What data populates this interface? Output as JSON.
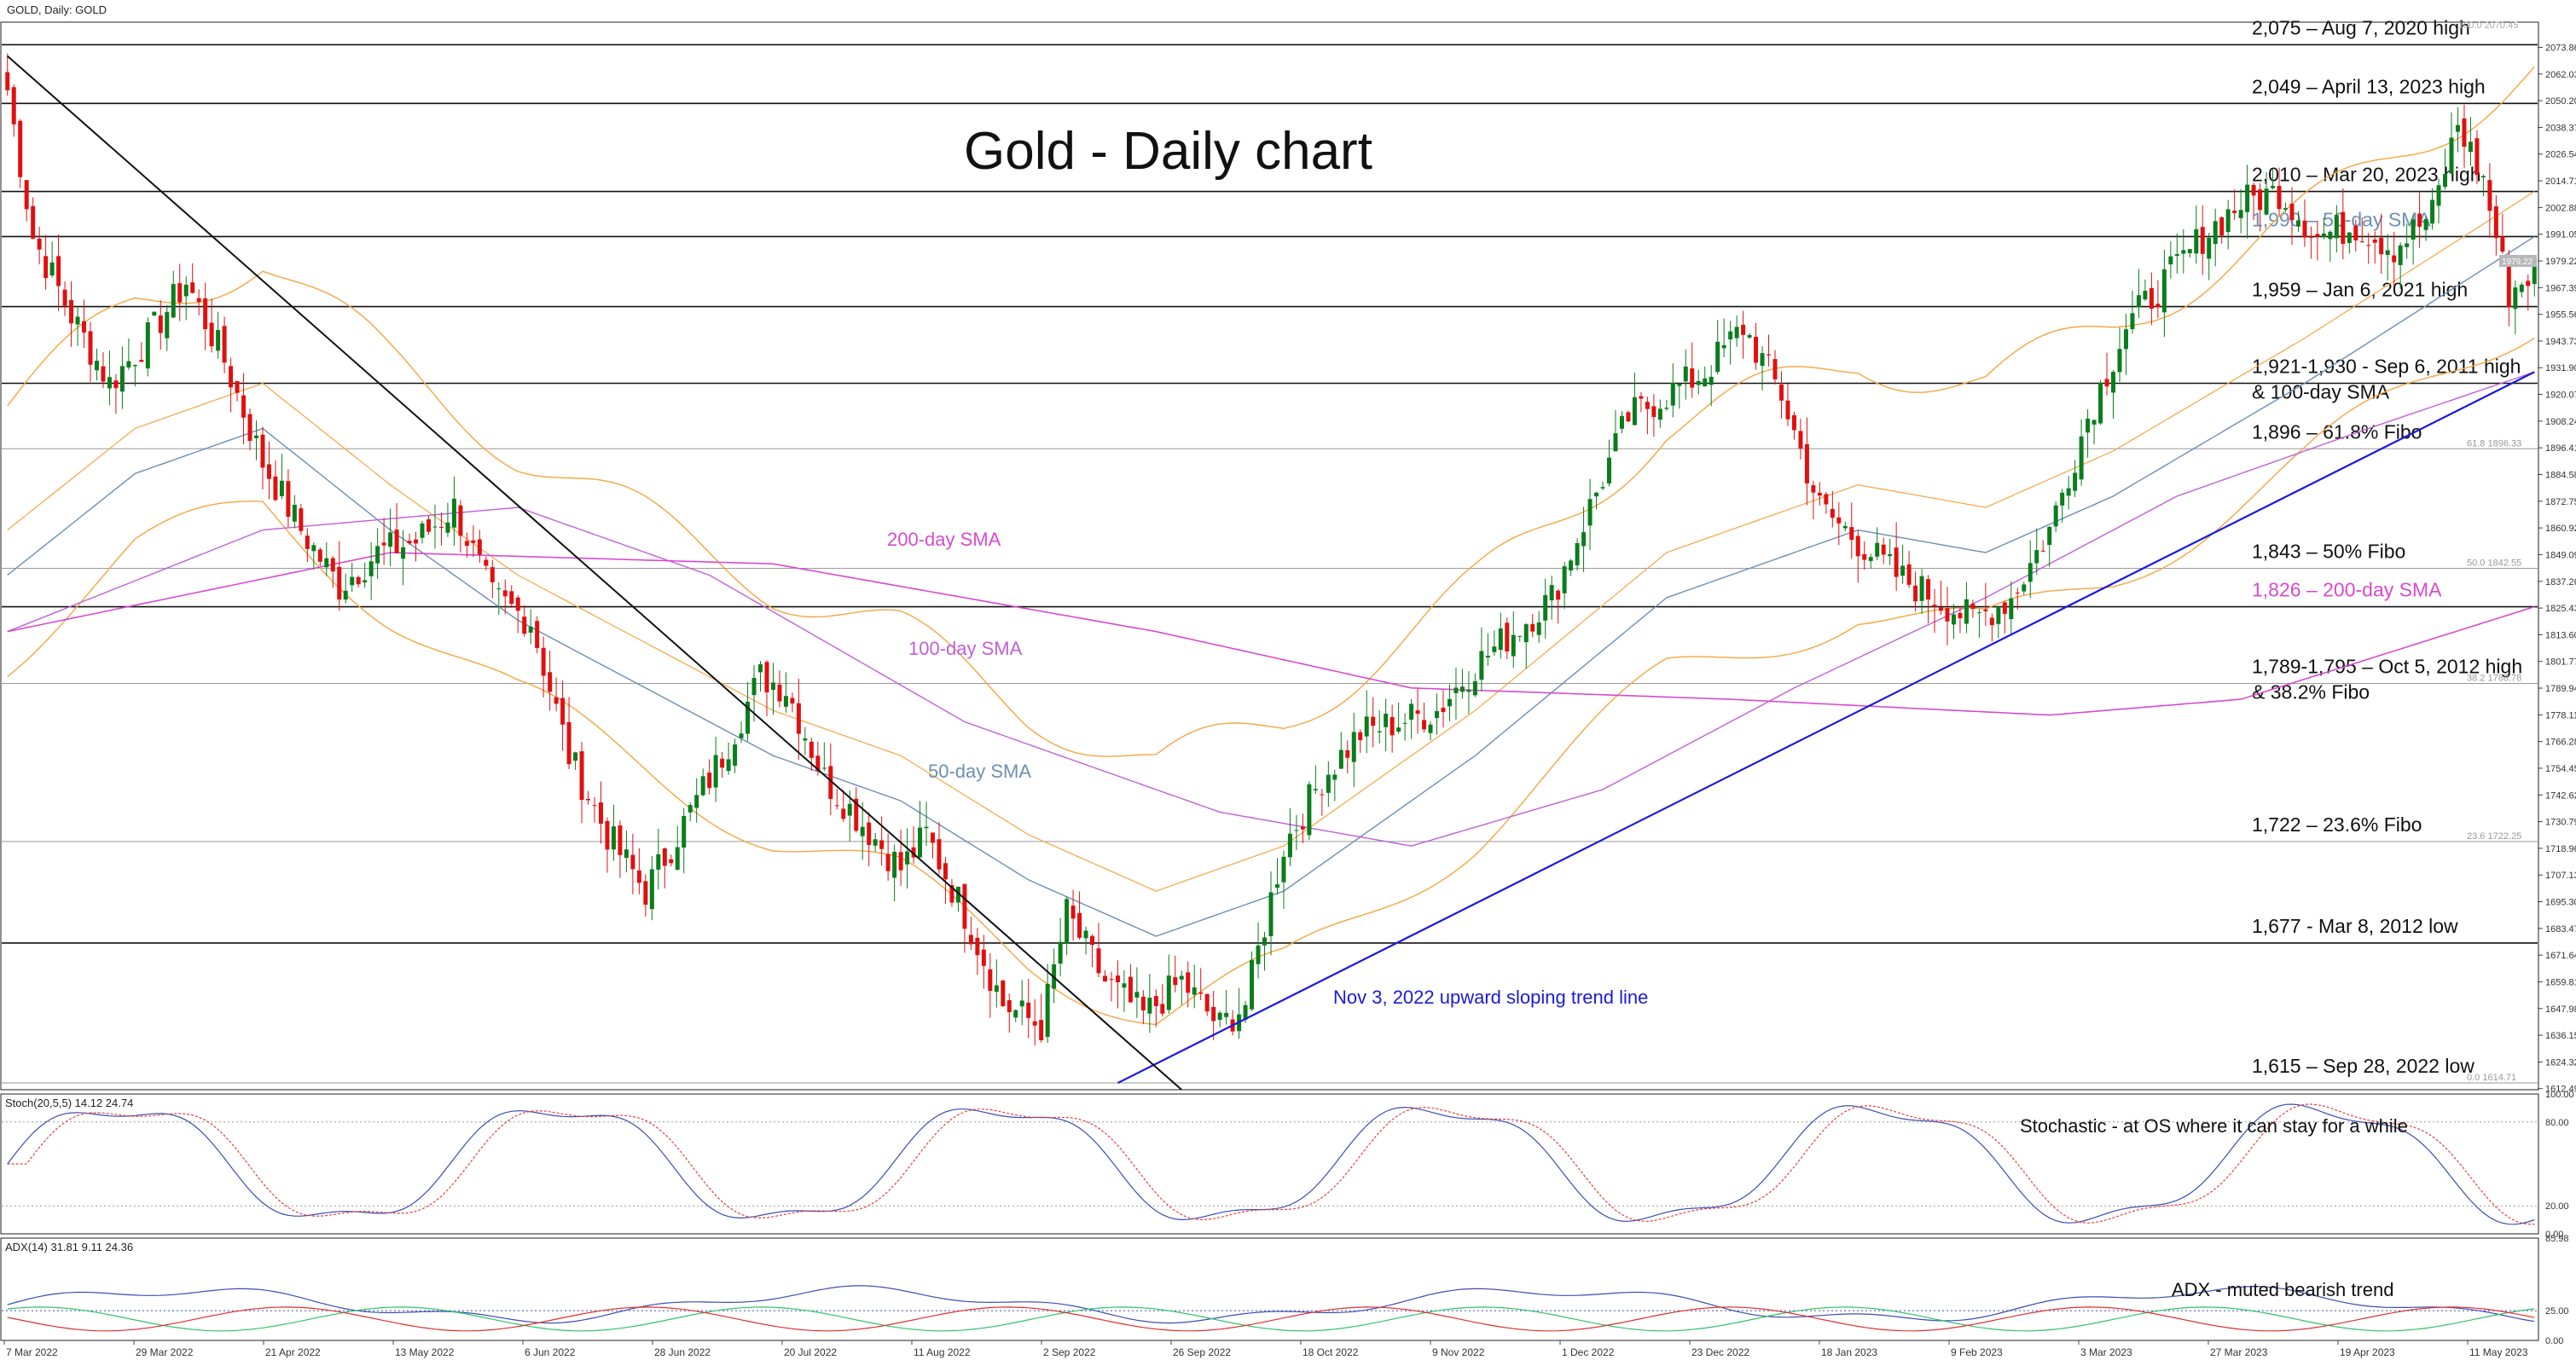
{
  "header": {
    "symbol_label": "GOLD, Daily:  GOLD"
  },
  "title": "Gold - Daily chart",
  "colors": {
    "bull": "#0a7d1c",
    "bear": "#e01010",
    "sma50": "#6b8fb5",
    "sma100": "#c060d8",
    "sma200": "#d84ad0",
    "bollinger": "#f4a640",
    "trend": "#1a1adc",
    "downtrend": "#111111",
    "stoch_main": "#3c4cb4",
    "stoch_signal": "#e04040",
    "adx_main": "#3c4cb4",
    "adx_plus": "#2ec46a",
    "adx_minus": "#e03030",
    "grid": "#d8d8d8",
    "axis": "#444444"
  },
  "chart_data": {
    "type": "candlestick",
    "ylim": [
      1612,
      2085
    ],
    "y_ticks": [
      "2073.86",
      "2062.03",
      "2050.20",
      "2038.37",
      "2026.54",
      "2014.71",
      "2002.88",
      "1991.05",
      "1979.22",
      "1967.39",
      "1955.56",
      "1943.73",
      "1931.90",
      "1920.07",
      "1908.24",
      "1896.41",
      "1884.58",
      "1872.75",
      "1860.92",
      "1849.09",
      "1837.26",
      "1825.43",
      "1813.60",
      "1801.77",
      "1789.94",
      "1778.11",
      "1766.28",
      "1754.45",
      "1742.62",
      "1730.79",
      "1718.96",
      "1707.13",
      "1695.30",
      "1683.47",
      "1671.64",
      "1659.81",
      "1647.98",
      "1636.15",
      "1624.32",
      "1612.49"
    ],
    "x_ticks": [
      "7 Mar 2022",
      "29 Mar 2022",
      "21 Apr 2022",
      "13 May 2022",
      "6 Jun 2022",
      "28 Jun 2022",
      "20 Jul 2022",
      "11 Aug 2022",
      "2 Sep 2022",
      "26 Sep 2022",
      "18 Oct 2022",
      "9 Nov 2022",
      "1 Dec 2022",
      "23 Dec 2022",
      "18 Jan 2023",
      "9 Feb 2023",
      "3 Mar 2023",
      "27 Mar 2023",
      "19 Apr 2023",
      "11 May 2023"
    ],
    "price_anchors": [
      [
        0,
        2055
      ],
      [
        4,
        1990
      ],
      [
        10,
        1955
      ],
      [
        16,
        1925
      ],
      [
        22,
        1945
      ],
      [
        28,
        1970
      ],
      [
        34,
        1935
      ],
      [
        40,
        1890
      ],
      [
        46,
        1860
      ],
      [
        52,
        1835
      ],
      [
        58,
        1850
      ],
      [
        64,
        1855
      ],
      [
        70,
        1870
      ],
      [
        76,
        1830
      ],
      [
        82,
        1820
      ],
      [
        88,
        1760
      ],
      [
        94,
        1725
      ],
      [
        100,
        1700
      ],
      [
        106,
        1730
      ],
      [
        112,
        1760
      ],
      [
        118,
        1795
      ],
      [
        122,
        1790
      ],
      [
        128,
        1750
      ],
      [
        134,
        1730
      ],
      [
        140,
        1710
      ],
      [
        144,
        1725
      ],
      [
        150,
        1690
      ],
      [
        156,
        1650
      ],
      [
        162,
        1640
      ],
      [
        166,
        1690
      ],
      [
        172,
        1660
      ],
      [
        178,
        1645
      ],
      [
        184,
        1660
      ],
      [
        190,
        1640
      ],
      [
        194,
        1650
      ],
      [
        200,
        1720
      ],
      [
        206,
        1750
      ],
      [
        212,
        1770
      ],
      [
        218,
        1775
      ],
      [
        224,
        1780
      ],
      [
        230,
        1800
      ],
      [
        236,
        1815
      ],
      [
        242,
        1830
      ],
      [
        248,
        1870
      ],
      [
        254,
        1910
      ],
      [
        260,
        1920
      ],
      [
        266,
        1930
      ],
      [
        272,
        1950
      ],
      [
        278,
        1920
      ],
      [
        284,
        1870
      ],
      [
        290,
        1855
      ],
      [
        296,
        1840
      ],
      [
        302,
        1830
      ],
      [
        308,
        1820
      ],
      [
        314,
        1830
      ],
      [
        320,
        1860
      ],
      [
        326,
        1910
      ],
      [
        332,
        1950
      ],
      [
        338,
        1970
      ],
      [
        344,
        1990
      ],
      [
        350,
        2005
      ],
      [
        356,
        2010
      ],
      [
        362,
        1990
      ],
      [
        368,
        1995
      ],
      [
        374,
        1985
      ],
      [
        380,
        2000
      ],
      [
        384,
        2040
      ],
      [
        388,
        2015
      ],
      [
        392,
        1965
      ],
      [
        396,
        1975
      ]
    ],
    "sma50_anchors": [
      [
        0,
        1840
      ],
      [
        20,
        1885
      ],
      [
        40,
        1905
      ],
      [
        60,
        1860
      ],
      [
        80,
        1820
      ],
      [
        100,
        1790
      ],
      [
        120,
        1760
      ],
      [
        140,
        1740
      ],
      [
        160,
        1705
      ],
      [
        180,
        1680
      ],
      [
        200,
        1700
      ],
      [
        230,
        1760
      ],
      [
        260,
        1830
      ],
      [
        290,
        1860
      ],
      [
        310,
        1850
      ],
      [
        330,
        1875
      ],
      [
        360,
        1925
      ],
      [
        396,
        1990
      ]
    ],
    "sma100_anchors": [
      [
        0,
        1815
      ],
      [
        40,
        1860
      ],
      [
        80,
        1870
      ],
      [
        110,
        1840
      ],
      [
        150,
        1775
      ],
      [
        190,
        1735
      ],
      [
        220,
        1720
      ],
      [
        250,
        1745
      ],
      [
        280,
        1790
      ],
      [
        310,
        1830
      ],
      [
        340,
        1875
      ],
      [
        370,
        1905
      ],
      [
        396,
        1930
      ]
    ],
    "sma200_anchors": [
      [
        0,
        1815
      ],
      [
        60,
        1850
      ],
      [
        120,
        1845
      ],
      [
        180,
        1815
      ],
      [
        220,
        1790
      ],
      [
        270,
        1785
      ],
      [
        320,
        1778
      ],
      [
        350,
        1785
      ],
      [
        396,
        1826
      ]
    ],
    "bollinger_band_width": 55,
    "horizontal_levels": [
      {
        "value": 2075,
        "label": "2,075 – Aug 7, 2020 high"
      },
      {
        "value": 2049,
        "label": "2,049 – April 13, 2023 high"
      },
      {
        "value": 2010,
        "label": "2,010 – Mar 20, 2023 high"
      },
      {
        "value": 1990,
        "label": "1,990 – 50-day SMA"
      },
      {
        "value": 1959,
        "label": "1,959 – Jan 6, 2021 high"
      },
      {
        "value": 1925,
        "label": "1,921-1,930 - Sep 6, 2011 high",
        "label2": "& 100-day SMA"
      },
      {
        "value": 1896,
        "label": "1,896 – 61.8% Fibo",
        "fib": "61.8 1896.33"
      },
      {
        "value": 1843,
        "label": "1,843 – 50% Fibo",
        "fib": "50.0 1842.55"
      },
      {
        "value": 1826,
        "label": "1,826 – 200-day SMA"
      },
      {
        "value": 1792,
        "label": "1,789-1,795 – Oct 5, 2012 high",
        "label2": "& 38.2% Fibo",
        "fib": "38.2 1788.78"
      },
      {
        "value": 1722,
        "label": "1,722 – 23.6% Fibo",
        "fib": "23.6 1722.25"
      },
      {
        "value": 1677,
        "label": "1,677 - Mar 8, 2012 low"
      },
      {
        "value": 1615,
        "label": "1,615 – Sep 28, 2022 low",
        "fib": "0.0 1614.71"
      }
    ],
    "fib_top_label": "100.0 2070.45",
    "price_tag": "1979.22",
    "annotations": {
      "sma200": "200-day SMA",
      "sma100": "100-day SMA",
      "sma50": "50-day SMA",
      "trendline": "Nov 3, 2022 upward sloping trend line"
    },
    "trendline_up": [
      [
        174,
        1615
      ],
      [
        396,
        1930
      ]
    ],
    "trendline_down": [
      [
        0,
        2070
      ],
      [
        184,
        1612
      ]
    ],
    "stochastic": {
      "header": "Stoch(20,5,5) 14.12 24.74",
      "note": "Stochastic - at OS where it can stay for a while",
      "ticks": [
        "100.00",
        "80.00",
        "20.00",
        "0.00"
      ],
      "ylim": [
        0,
        100
      ]
    },
    "adx": {
      "header": "ADX(14) 31.81 9.11 24.36",
      "note": "ADX - muted bearish trend",
      "ticks": [
        "85.98",
        "25.00",
        "0.00"
      ],
      "ylim": [
        0,
        86
      ]
    }
  }
}
